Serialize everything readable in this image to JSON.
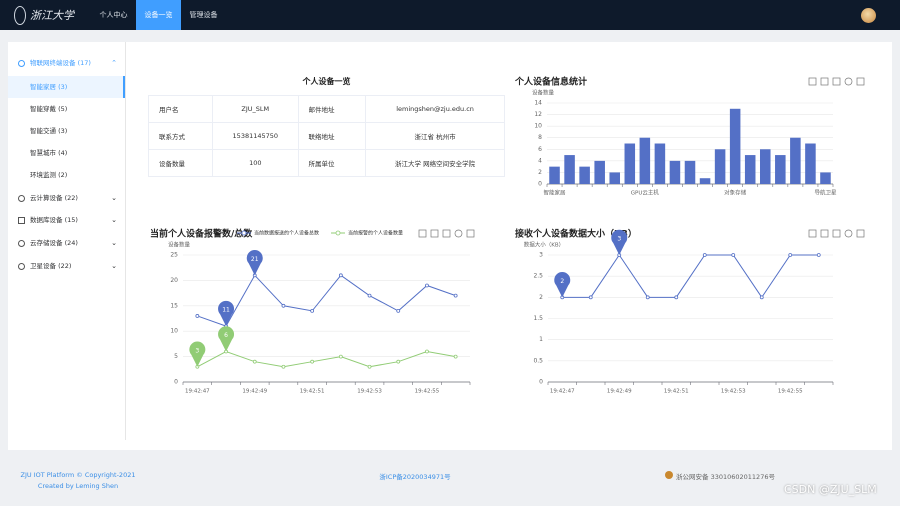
{
  "logo": "浙江大学",
  "nav": {
    "items": [
      "个人中心",
      "设备一览",
      "管理设备"
    ]
  },
  "sidebar": {
    "groups": [
      {
        "label": "物联网终端设备 (17)",
        "items": [
          "智能家居 (3)",
          "智能穿戴 (5)",
          "智能交通 (3)",
          "智慧城市 (4)",
          "环境监测 (2)"
        ]
      },
      {
        "label": "云计算设备 (22)"
      },
      {
        "label": "数据库设备 (15)"
      },
      {
        "label": "云存储设备 (24)"
      },
      {
        "label": "卫星设备 (22)"
      }
    ]
  },
  "table": {
    "title": "个人设备一览",
    "rows": [
      [
        "用户名",
        "ZJU_SLM",
        "邮件地址",
        "lemingshen@zju.edu.cn"
      ],
      [
        "联系方式",
        "15381145750",
        "联络地址",
        "浙江省 杭州市"
      ],
      [
        "设备数量",
        "100",
        "所属单位",
        "浙江大学 网络空间安全学院"
      ]
    ]
  },
  "chart_data": [
    {
      "type": "bar",
      "title": "个人设备信息统计",
      "y_label": "设备数量",
      "categories": [
        "智能家居",
        null,
        null,
        null,
        null,
        null,
        "GPU云主机",
        null,
        null,
        null,
        null,
        null,
        "对象存储",
        null,
        null,
        null,
        null,
        null,
        "导航卫星"
      ],
      "values": [
        3,
        5,
        3,
        4,
        2,
        7,
        8,
        7,
        4,
        4,
        1,
        6,
        13,
        5,
        6,
        5,
        8,
        7,
        2
      ],
      "color": "#5470c6",
      "ylim": [
        0,
        14
      ],
      "yticks": [
        0,
        2,
        4,
        6,
        8,
        10,
        12,
        14
      ],
      "grid": true
    },
    {
      "type": "line",
      "title": "当前个人设备报警数/总数",
      "y_label": "设备数量",
      "categories": [
        "19:42:47",
        null,
        "19:42:49",
        null,
        "19:42:51",
        null,
        "19:42:53",
        null,
        "19:42:55",
        null
      ],
      "series": [
        {
          "name": "当前数据报送的个人设备总数",
          "color": "#5470c6",
          "values": [
            13,
            11,
            21,
            15,
            14,
            21,
            17,
            14,
            19,
            17
          ]
        },
        {
          "name": "当前报警的个人设备数量",
          "color": "#91cc75",
          "values": [
            3,
            6,
            4,
            3,
            4,
            5,
            3,
            4,
            6,
            5
          ]
        }
      ],
      "ylim": [
        0,
        25
      ],
      "yticks": [
        0,
        5,
        10,
        15,
        20,
        25
      ],
      "grid": true,
      "legend": "top",
      "markers": [
        "max",
        "min"
      ]
    },
    {
      "type": "line",
      "title": "接收个人设备数据大小（KB）",
      "y_label": "数据大小（KB）",
      "categories": [
        "19:42:47",
        null,
        "19:42:49",
        null,
        "19:42:51",
        null,
        "19:42:53",
        null,
        "19:42:55",
        null
      ],
      "series": [
        {
          "color": "#5470c6",
          "values": [
            2,
            2,
            3,
            2,
            2,
            3,
            3,
            2,
            3,
            3
          ]
        }
      ],
      "ylim": [
        0,
        3
      ],
      "yticks": [
        0,
        0.5,
        1,
        1.5,
        2,
        2.5,
        3
      ],
      "grid": true,
      "markers": [
        "max",
        "min"
      ]
    }
  ],
  "footer": {
    "left": [
      "ZJU IOT Platform © Copyright-2021",
      "Created by Leming Shen"
    ],
    "center": "浙ICP备2020034971号",
    "right": "浙公网安备 33010602011276号"
  },
  "watermark": "CSDN @ZJU_SLM"
}
